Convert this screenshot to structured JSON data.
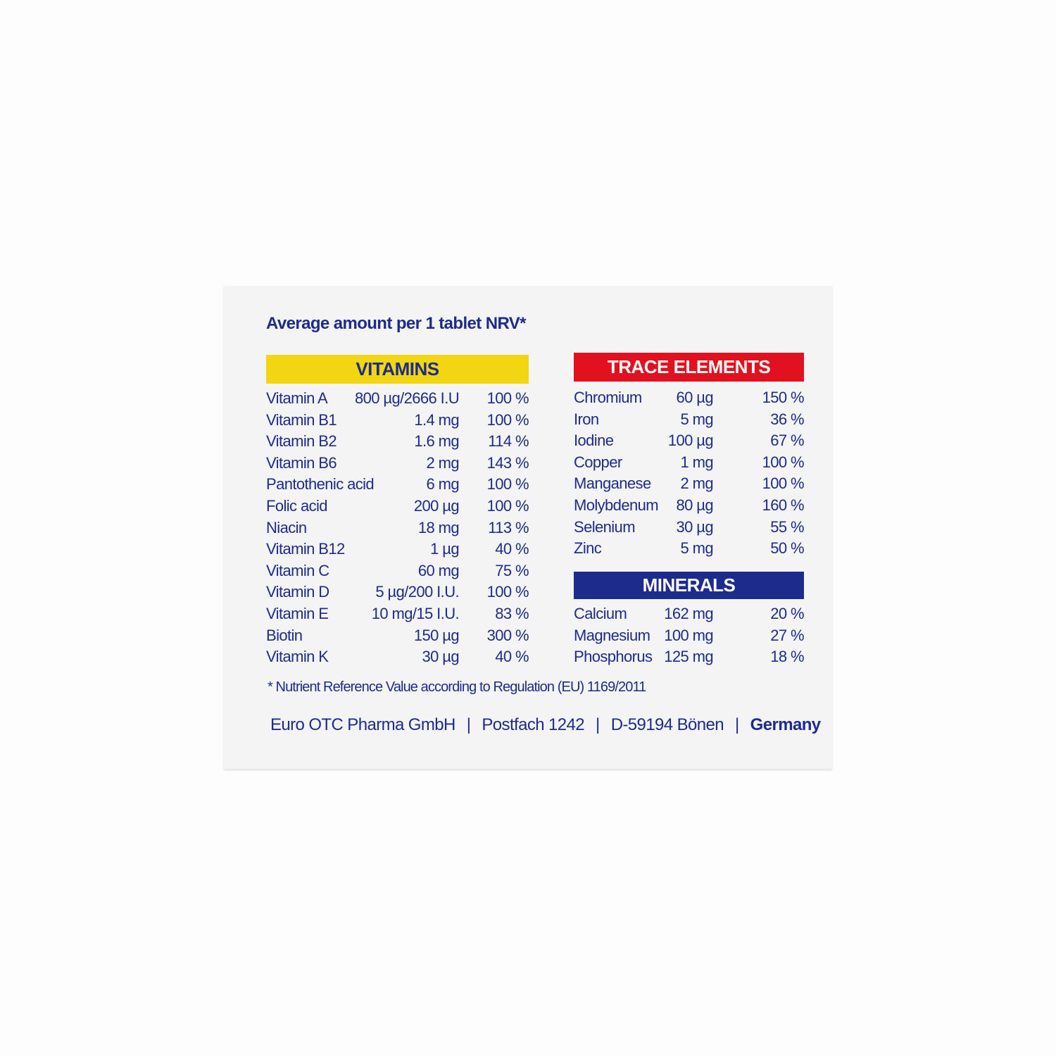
{
  "title": "Average amount per 1 tablet NRV*",
  "colors": {
    "text": "#1d2b8c",
    "vitamins": "#f3d612",
    "trace": "#e2111f",
    "minerals": "#1d2b8c"
  },
  "vitamins": {
    "heading": "VITAMINS",
    "rows": [
      {
        "name": "Vitamin A",
        "amount": "800 µg/2666 I.U",
        "nrv": "100 %"
      },
      {
        "name": "Vitamin B1",
        "amount": "1.4 mg",
        "nrv": "100 %"
      },
      {
        "name": "Vitamin B2",
        "amount": "1.6 mg",
        "nrv": "114 %"
      },
      {
        "name": "Vitamin B6",
        "amount": "2 mg",
        "nrv": "143 %"
      },
      {
        "name": "Pantothenic acid",
        "amount": "6 mg",
        "nrv": "100 %"
      },
      {
        "name": "Folic acid",
        "amount": "200 µg",
        "nrv": "100 %"
      },
      {
        "name": "Niacin",
        "amount": "18 mg",
        "nrv": "113 %"
      },
      {
        "name": "Vitamin B12",
        "amount": "1 µg",
        "nrv": "40 %"
      },
      {
        "name": "Vitamin C",
        "amount": "60 mg",
        "nrv": "75 %"
      },
      {
        "name": "Vitamin D",
        "amount": "5 µg/200 I.U.",
        "nrv": "100 %"
      },
      {
        "name": "Vitamin E",
        "amount": "10 mg/15 I.U.",
        "nrv": "83 %"
      },
      {
        "name": "Biotin",
        "amount": "150 µg",
        "nrv": "300 %"
      },
      {
        "name": "Vitamin K",
        "amount": "30 µg",
        "nrv": "40 %"
      }
    ]
  },
  "trace_elements": {
    "heading": "TRACE ELEMENTS",
    "rows": [
      {
        "name": "Chromium",
        "amount": "60 µg",
        "nrv": "150 %"
      },
      {
        "name": "Iron",
        "amount": "5 mg",
        "nrv": "36 %"
      },
      {
        "name": "Iodine",
        "amount": "100 µg",
        "nrv": "67 %"
      },
      {
        "name": "Copper",
        "amount": "1 mg",
        "nrv": "100 %"
      },
      {
        "name": "Manganese",
        "amount": "2 mg",
        "nrv": "100 %"
      },
      {
        "name": "Molybdenum",
        "amount": "80 µg",
        "nrv": "160 %"
      },
      {
        "name": "Selenium",
        "amount": "30 µg",
        "nrv": "55 %"
      },
      {
        "name": "Zinc",
        "amount": "5 mg",
        "nrv": "50 %"
      }
    ]
  },
  "minerals": {
    "heading": "MINERALS",
    "rows": [
      {
        "name": "Calcium",
        "amount": "162 mg",
        "nrv": "20 %"
      },
      {
        "name": "Magnesium",
        "amount": "100 mg",
        "nrv": "27 %"
      },
      {
        "name": "Phosphorus",
        "amount": "125 mg",
        "nrv": "18 %"
      }
    ]
  },
  "footnote": "*  Nutrient Reference Value according to Regulation (EU) 1169/2011",
  "address": {
    "company": "Euro OTC Pharma GmbH",
    "sep": "|",
    "postbox": "Postfach 1242",
    "city": "D-59194 Bönen",
    "country": "Germany"
  }
}
